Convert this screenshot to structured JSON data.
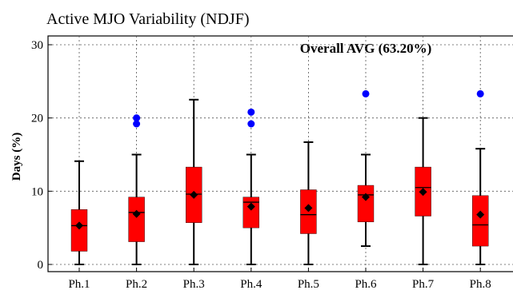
{
  "colors": {
    "box_fill": "#ff0000",
    "outlier": "#0000ff",
    "whisker": "#000000",
    "mean_marker": "#000000",
    "grid": "#555555"
  },
  "chart_data": {
    "type": "box",
    "title": "Active MJO Variability (NDJF)",
    "xlabel": "",
    "ylabel": "Days (%)",
    "ylim": [
      0,
      30
    ],
    "yticks": [
      0,
      10,
      20,
      30
    ],
    "grid": true,
    "annotation": "Overall AVG (63.20%)",
    "categories": [
      "Ph.1",
      "Ph.2",
      "Ph.3",
      "Ph.4",
      "Ph.5",
      "Ph.6",
      "Ph.7",
      "Ph.8"
    ],
    "boxes": [
      {
        "category": "Ph.1",
        "min": 0.0,
        "q1": 1.8,
        "median": 5.3,
        "q3": 7.5,
        "max": 14.1,
        "mean": 5.3,
        "outliers": []
      },
      {
        "category": "Ph.2",
        "min": 0.0,
        "q1": 3.1,
        "median": 7.1,
        "q3": 9.2,
        "max": 15.0,
        "mean": 6.9,
        "outliers": [
          19.2,
          20.0
        ]
      },
      {
        "category": "Ph.3",
        "min": 0.0,
        "q1": 5.7,
        "median": 9.6,
        "q3": 13.3,
        "max": 22.5,
        "mean": 9.5,
        "outliers": []
      },
      {
        "category": "Ph.4",
        "min": 0.0,
        "q1": 5.0,
        "median": 8.5,
        "q3": 9.2,
        "max": 15.0,
        "mean": 7.9,
        "outliers": [
          19.2,
          20.8
        ]
      },
      {
        "category": "Ph.5",
        "min": 0.0,
        "q1": 4.2,
        "median": 6.8,
        "q3": 10.2,
        "max": 16.7,
        "mean": 7.7,
        "outliers": []
      },
      {
        "category": "Ph.6",
        "min": 2.5,
        "q1": 5.8,
        "median": 9.5,
        "q3": 10.8,
        "max": 15.0,
        "mean": 9.2,
        "outliers": [
          23.3
        ]
      },
      {
        "category": "Ph.7",
        "min": 0.0,
        "q1": 6.6,
        "median": 10.5,
        "q3": 13.3,
        "max": 20.0,
        "mean": 9.9,
        "outliers": []
      },
      {
        "category": "Ph.8",
        "min": 0.0,
        "q1": 2.5,
        "median": 5.4,
        "q3": 9.4,
        "max": 15.8,
        "mean": 6.8,
        "outliers": [
          23.3
        ]
      }
    ]
  }
}
